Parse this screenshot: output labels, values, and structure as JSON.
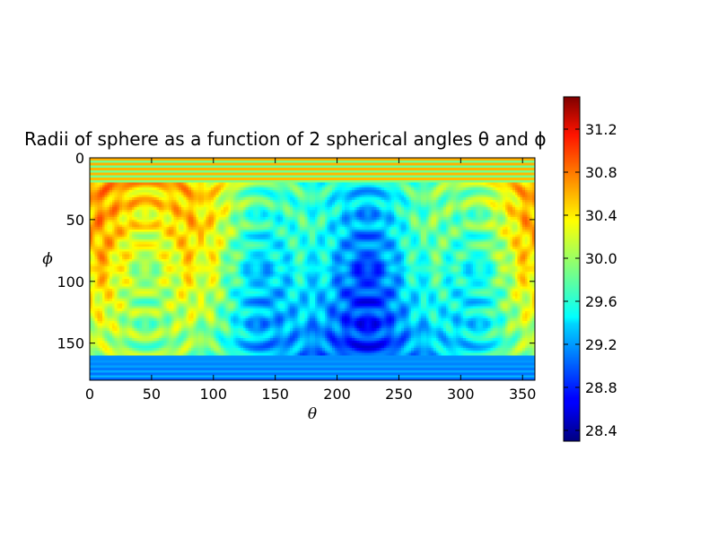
{
  "chart_data": {
    "type": "heatmap",
    "title": "Radii of sphere as a function of 2 spherical angles θ and ϕ",
    "xlabel": "θ",
    "ylabel": "ϕ",
    "xlim": [
      0,
      360
    ],
    "ylim": [
      180,
      0
    ],
    "x_ticks": [
      0,
      50,
      100,
      150,
      200,
      250,
      300,
      350
    ],
    "y_ticks": [
      0,
      50,
      100,
      150
    ],
    "colorbar": {
      "colormap": "jet",
      "range": [
        28.3,
        31.5
      ],
      "ticks": [
        28.4,
        28.8,
        29.2,
        29.6,
        30.0,
        30.4,
        30.8,
        31.2
      ],
      "tick_labels": [
        "28.4",
        "28.8",
        "29.2",
        "29.6",
        "30.0",
        "30.4",
        "30.8",
        "31.2"
      ]
    },
    "pattern": {
      "description_values": "radius is highest near theta 0-90 and 360 band edges, lowest near theta 180 and 270 at phi 90",
      "hot_spots": [
        {
          "theta": 45,
          "phi": 45,
          "value": 30.9
        },
        {
          "theta": 45,
          "phi": 135,
          "value": 29.9
        },
        {
          "theta": 0,
          "phi": 90,
          "value": 30.8
        },
        {
          "theta": 90,
          "phi": 90,
          "value": 30.1
        },
        {
          "theta": 360,
          "phi": 90,
          "value": 30.8
        }
      ],
      "cold_spots": [
        {
          "theta": 180,
          "phi": 90,
          "value": 28.9
        },
        {
          "theta": 270,
          "phi": 90,
          "value": 28.9
        },
        {
          "theta": 225,
          "phi": 45,
          "value": 29.1
        },
        {
          "theta": 225,
          "phi": 135,
          "value": 28.7
        }
      ],
      "band_top_value": 30.5,
      "band_bottom_value": 29.0
    }
  }
}
